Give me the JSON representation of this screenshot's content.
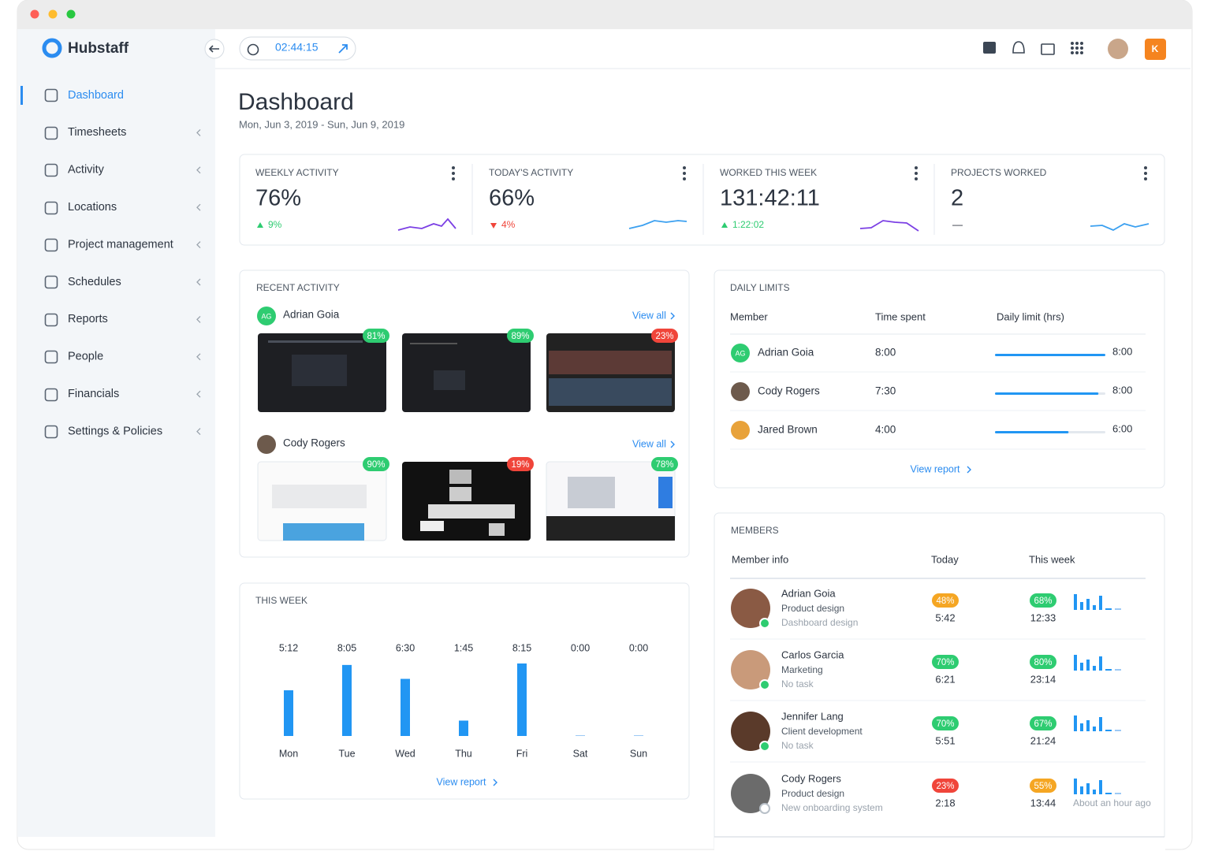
{
  "app": {
    "name": "Hubstaff"
  },
  "nav": {
    "items": [
      "Dashboard",
      "Timesheets",
      "Activity",
      "Locations",
      "Project management",
      "Schedules",
      "Reports",
      "People",
      "Financials",
      "Settings & Policies"
    ]
  },
  "topbar": {
    "timer": "02:44:15",
    "user_initial": "K"
  },
  "header": {
    "title": "Dashboard",
    "date_range": "Mon, Jun 3, 2019 - Sun, Jun 9, 2019"
  },
  "stats": [
    {
      "label": "WEEKLY ACTIVITY",
      "value": "76%",
      "change": "9%",
      "direction": "up"
    },
    {
      "label": "TODAY'S ACTIVITY",
      "value": "66%",
      "change": "4%",
      "direction": "down"
    },
    {
      "label": "WORKED THIS WEEK",
      "value": "131:42:11",
      "change": "1:22:02",
      "direction": "up"
    },
    {
      "label": "PROJECTS WORKED",
      "value": "2",
      "change": "—",
      "direction": "none"
    }
  ],
  "recent_activity": {
    "title": "RECENT ACTIVITY",
    "view_all": "View all",
    "members": [
      {
        "initials": "AG",
        "name": "Adrian Goia",
        "screenshots": [
          {
            "activity": "81%",
            "color": "#2ecc71"
          },
          {
            "activity": "89%",
            "color": "#2ecc71"
          },
          {
            "activity": "23%",
            "color": "#f0453a"
          }
        ]
      },
      {
        "name": "Cody Rogers",
        "screenshots": [
          {
            "activity": "90%",
            "color": "#2ecc71"
          },
          {
            "activity": "19%",
            "color": "#f0453a"
          },
          {
            "activity": "78%",
            "color": "#2ecc71"
          }
        ]
      }
    ]
  },
  "chart_data": {
    "type": "bar",
    "title": "THIS WEEK",
    "categories": [
      "Mon",
      "Tue",
      "Wed",
      "Thu",
      "Fri",
      "Sat",
      "Sun"
    ],
    "values": [
      312,
      485,
      390,
      105,
      495,
      0,
      0
    ],
    "value_labels": [
      "5:12",
      "8:05",
      "6:30",
      "1:45",
      "8:15",
      "0:00",
      "0:00"
    ],
    "color": "#2196f3"
  },
  "this_week_footer": {
    "link": "View report"
  },
  "daily_limits": {
    "title": "DAILY LIMITS",
    "columns": [
      "Member",
      "Time spent",
      "Daily limit (hrs)"
    ],
    "rows": [
      {
        "initials": "AG",
        "name": "Adrian Goia",
        "spent": "8:00",
        "limit": "8:00"
      },
      {
        "name": "Cody Rogers",
        "spent": "7:30",
        "limit": "8:00"
      },
      {
        "name": "Jared Brown",
        "spent": "4:00",
        "limit": "6:00"
      }
    ],
    "link": "View report"
  },
  "members": {
    "title": "MEMBERS",
    "columns": [
      "Member info",
      "Today",
      "This week"
    ],
    "rows": [
      {
        "name": "Adrian Goia",
        "role": "Product design",
        "task": "Dashboard design",
        "today_pct": "48%",
        "today_color": "#f5a623",
        "today_time": "5:42",
        "week_pct": "68%",
        "week_color": "#2ecc71",
        "week_time": "12:33"
      },
      {
        "name": "Carlos Garcia",
        "role": "Marketing",
        "task": "No task",
        "today_pct": "70%",
        "today_color": "#2ecc71",
        "today_time": "6:21",
        "week_pct": "80%",
        "week_color": "#2ecc71",
        "week_time": "23:14"
      },
      {
        "name": "Jennifer Lang",
        "role": "Client development",
        "task": "No task",
        "today_pct": "70%",
        "today_color": "#2ecc71",
        "today_time": "5:51",
        "week_pct": "67%",
        "week_color": "#2ecc71",
        "week_time": "21:24"
      },
      {
        "name": "Cody Rogers",
        "role": "Product design",
        "task": "New onboarding system",
        "today_pct": "23%",
        "today_color": "#f0453a",
        "today_time": "2:18",
        "week_pct": "55%",
        "week_color": "#f5a623",
        "week_time": "13:44",
        "last_seen": "About an hour ago"
      }
    ]
  }
}
